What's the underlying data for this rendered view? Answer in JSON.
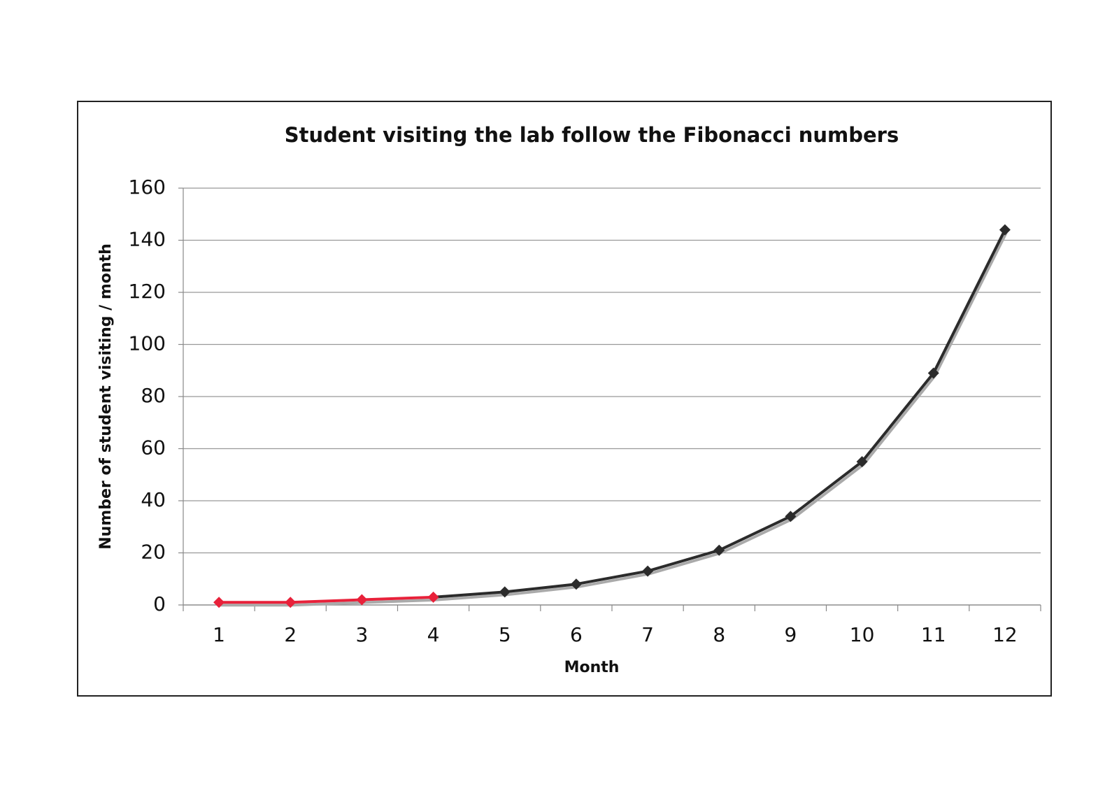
{
  "chart_data": {
    "type": "line",
    "title": "Student visiting the lab follow the Fibonacci numbers",
    "x_label": "Month",
    "y_label": "Number of student visiting / month",
    "categories": [
      "1",
      "2",
      "3",
      "4",
      "5",
      "6",
      "7",
      "8",
      "9",
      "10",
      "11",
      "12"
    ],
    "values": [
      1,
      1,
      2,
      3,
      5,
      8,
      13,
      21,
      34,
      55,
      89,
      144
    ],
    "point_colors": [
      "#e8213a",
      "#e8213a",
      "#e8213a",
      "#e8213a",
      "#2b2b2b",
      "#2b2b2b",
      "#2b2b2b",
      "#2b2b2b",
      "#2b2b2b",
      "#2b2b2b",
      "#2b2b2b",
      "#2b2b2b"
    ],
    "ylim": [
      0,
      160
    ],
    "yticks": [
      0,
      20,
      40,
      60,
      80,
      100,
      120,
      140,
      160
    ],
    "grid": true
  }
}
